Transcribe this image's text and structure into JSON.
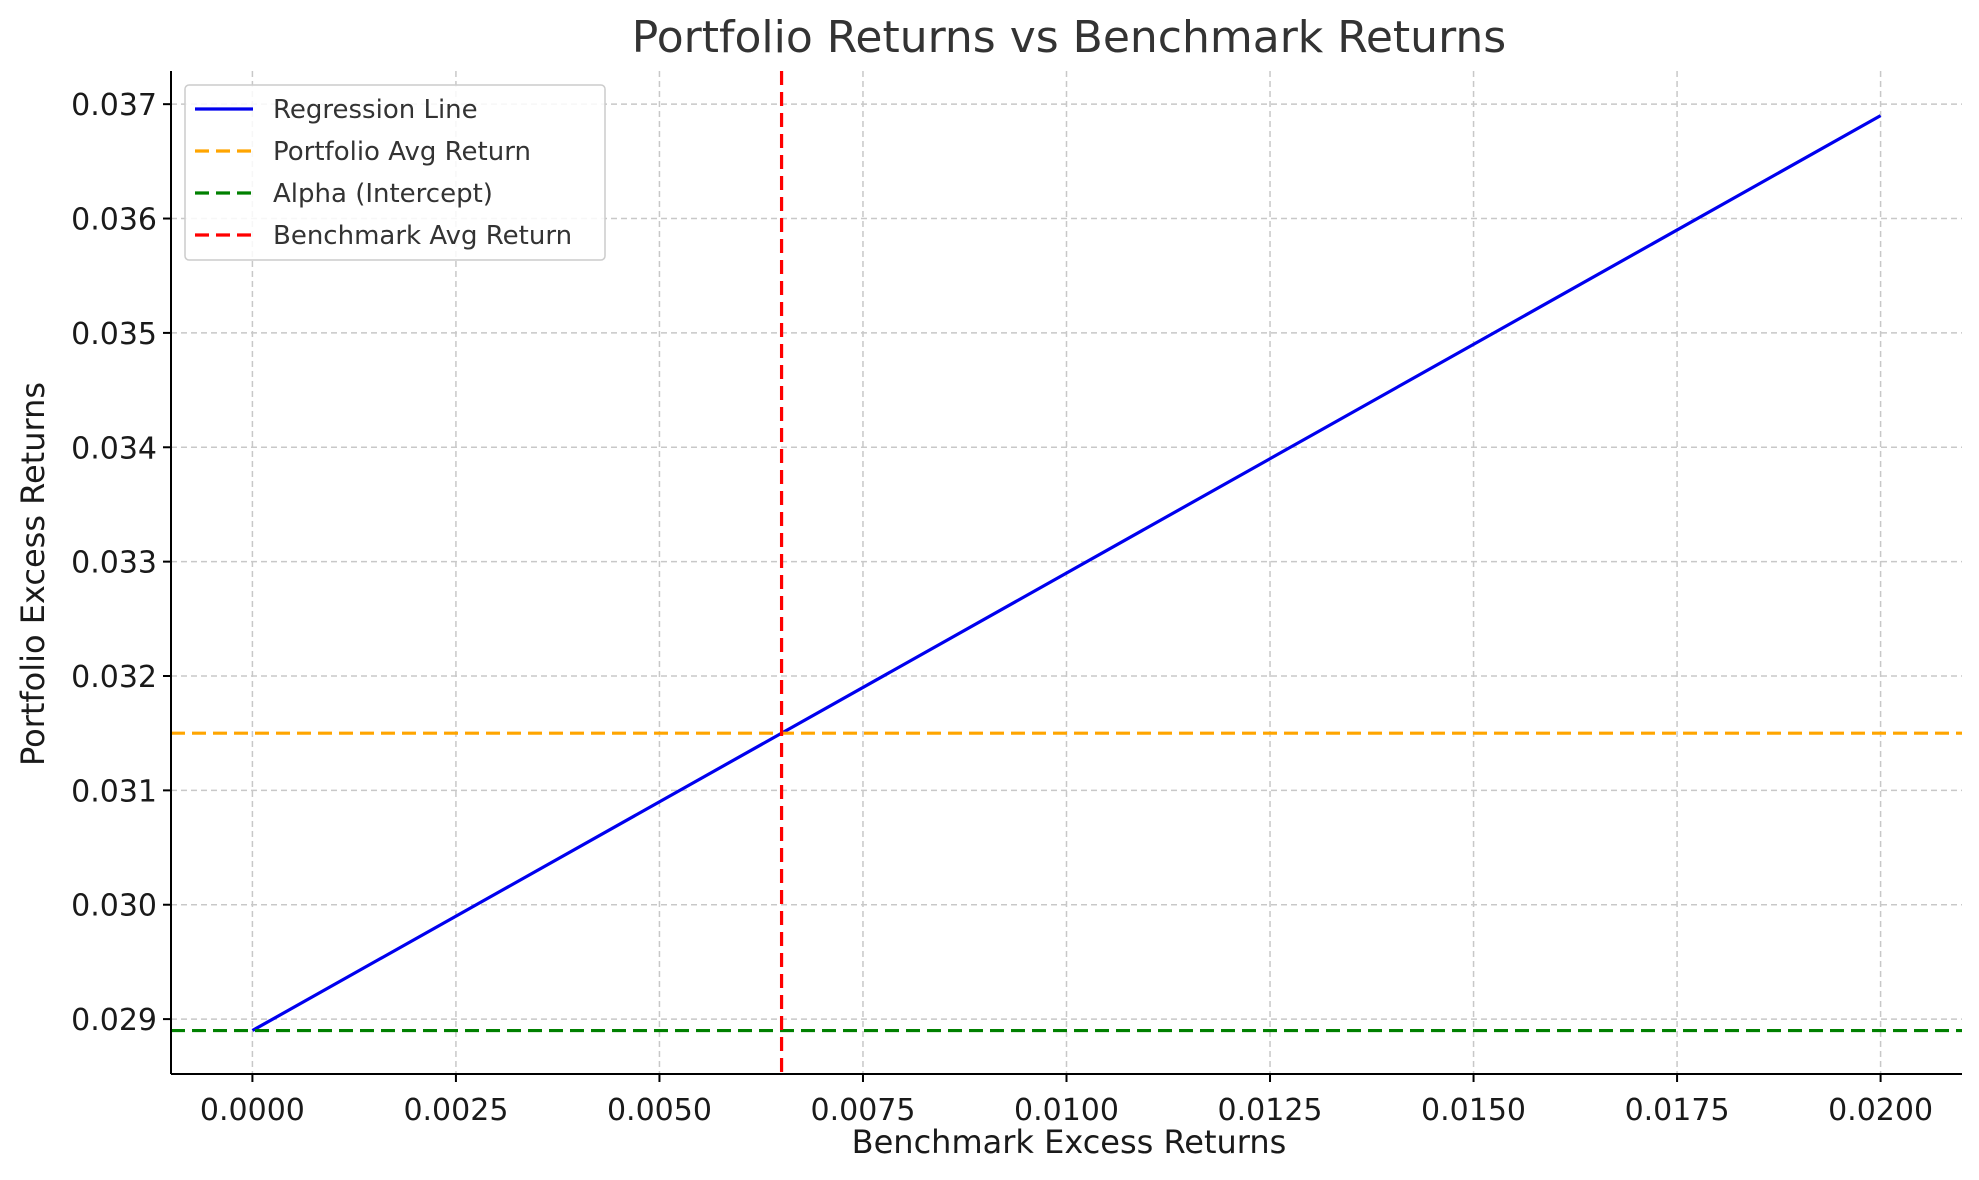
{
  "chart_data": {
    "type": "line",
    "title": "Portfolio Returns vs Benchmark Returns",
    "xlabel": "Benchmark Excess Returns",
    "ylabel": "Portfolio Excess Returns",
    "xlim": [
      -0.001,
      0.021
    ],
    "ylim": [
      0.02852,
      0.03729
    ],
    "x_ticks": [
      0.0,
      0.0025,
      0.005,
      0.0075,
      0.01,
      0.0125,
      0.015,
      0.0175,
      0.02
    ],
    "x_tick_labels": [
      "0.0000",
      "0.0025",
      "0.0050",
      "0.0075",
      "0.0100",
      "0.0125",
      "0.0150",
      "0.0175",
      "0.0200"
    ],
    "y_ticks": [
      0.029,
      0.03,
      0.031,
      0.032,
      0.033,
      0.034,
      0.035,
      0.036,
      0.037
    ],
    "y_tick_labels": [
      "0.029",
      "0.030",
      "0.031",
      "0.032",
      "0.033",
      "0.034",
      "0.035",
      "0.036",
      "0.037"
    ],
    "grid": true,
    "legend_position": "top-left",
    "series": [
      {
        "name": "Regression Line",
        "kind": "line",
        "style": "solid",
        "color": "#0000ee",
        "x": [
          0.0,
          0.02
        ],
        "y": [
          0.0289,
          0.0369
        ]
      },
      {
        "name": "Portfolio Avg Return",
        "kind": "hline",
        "style": "dashed",
        "color": "#ffa500",
        "y": 0.0315
      },
      {
        "name": "Alpha (Intercept)",
        "kind": "hline",
        "style": "dashed",
        "color": "#008000",
        "y": 0.0289
      },
      {
        "name": "Benchmark Avg Return",
        "kind": "vline",
        "style": "dashed",
        "color": "#ff0000",
        "x": 0.0065
      }
    ]
  }
}
